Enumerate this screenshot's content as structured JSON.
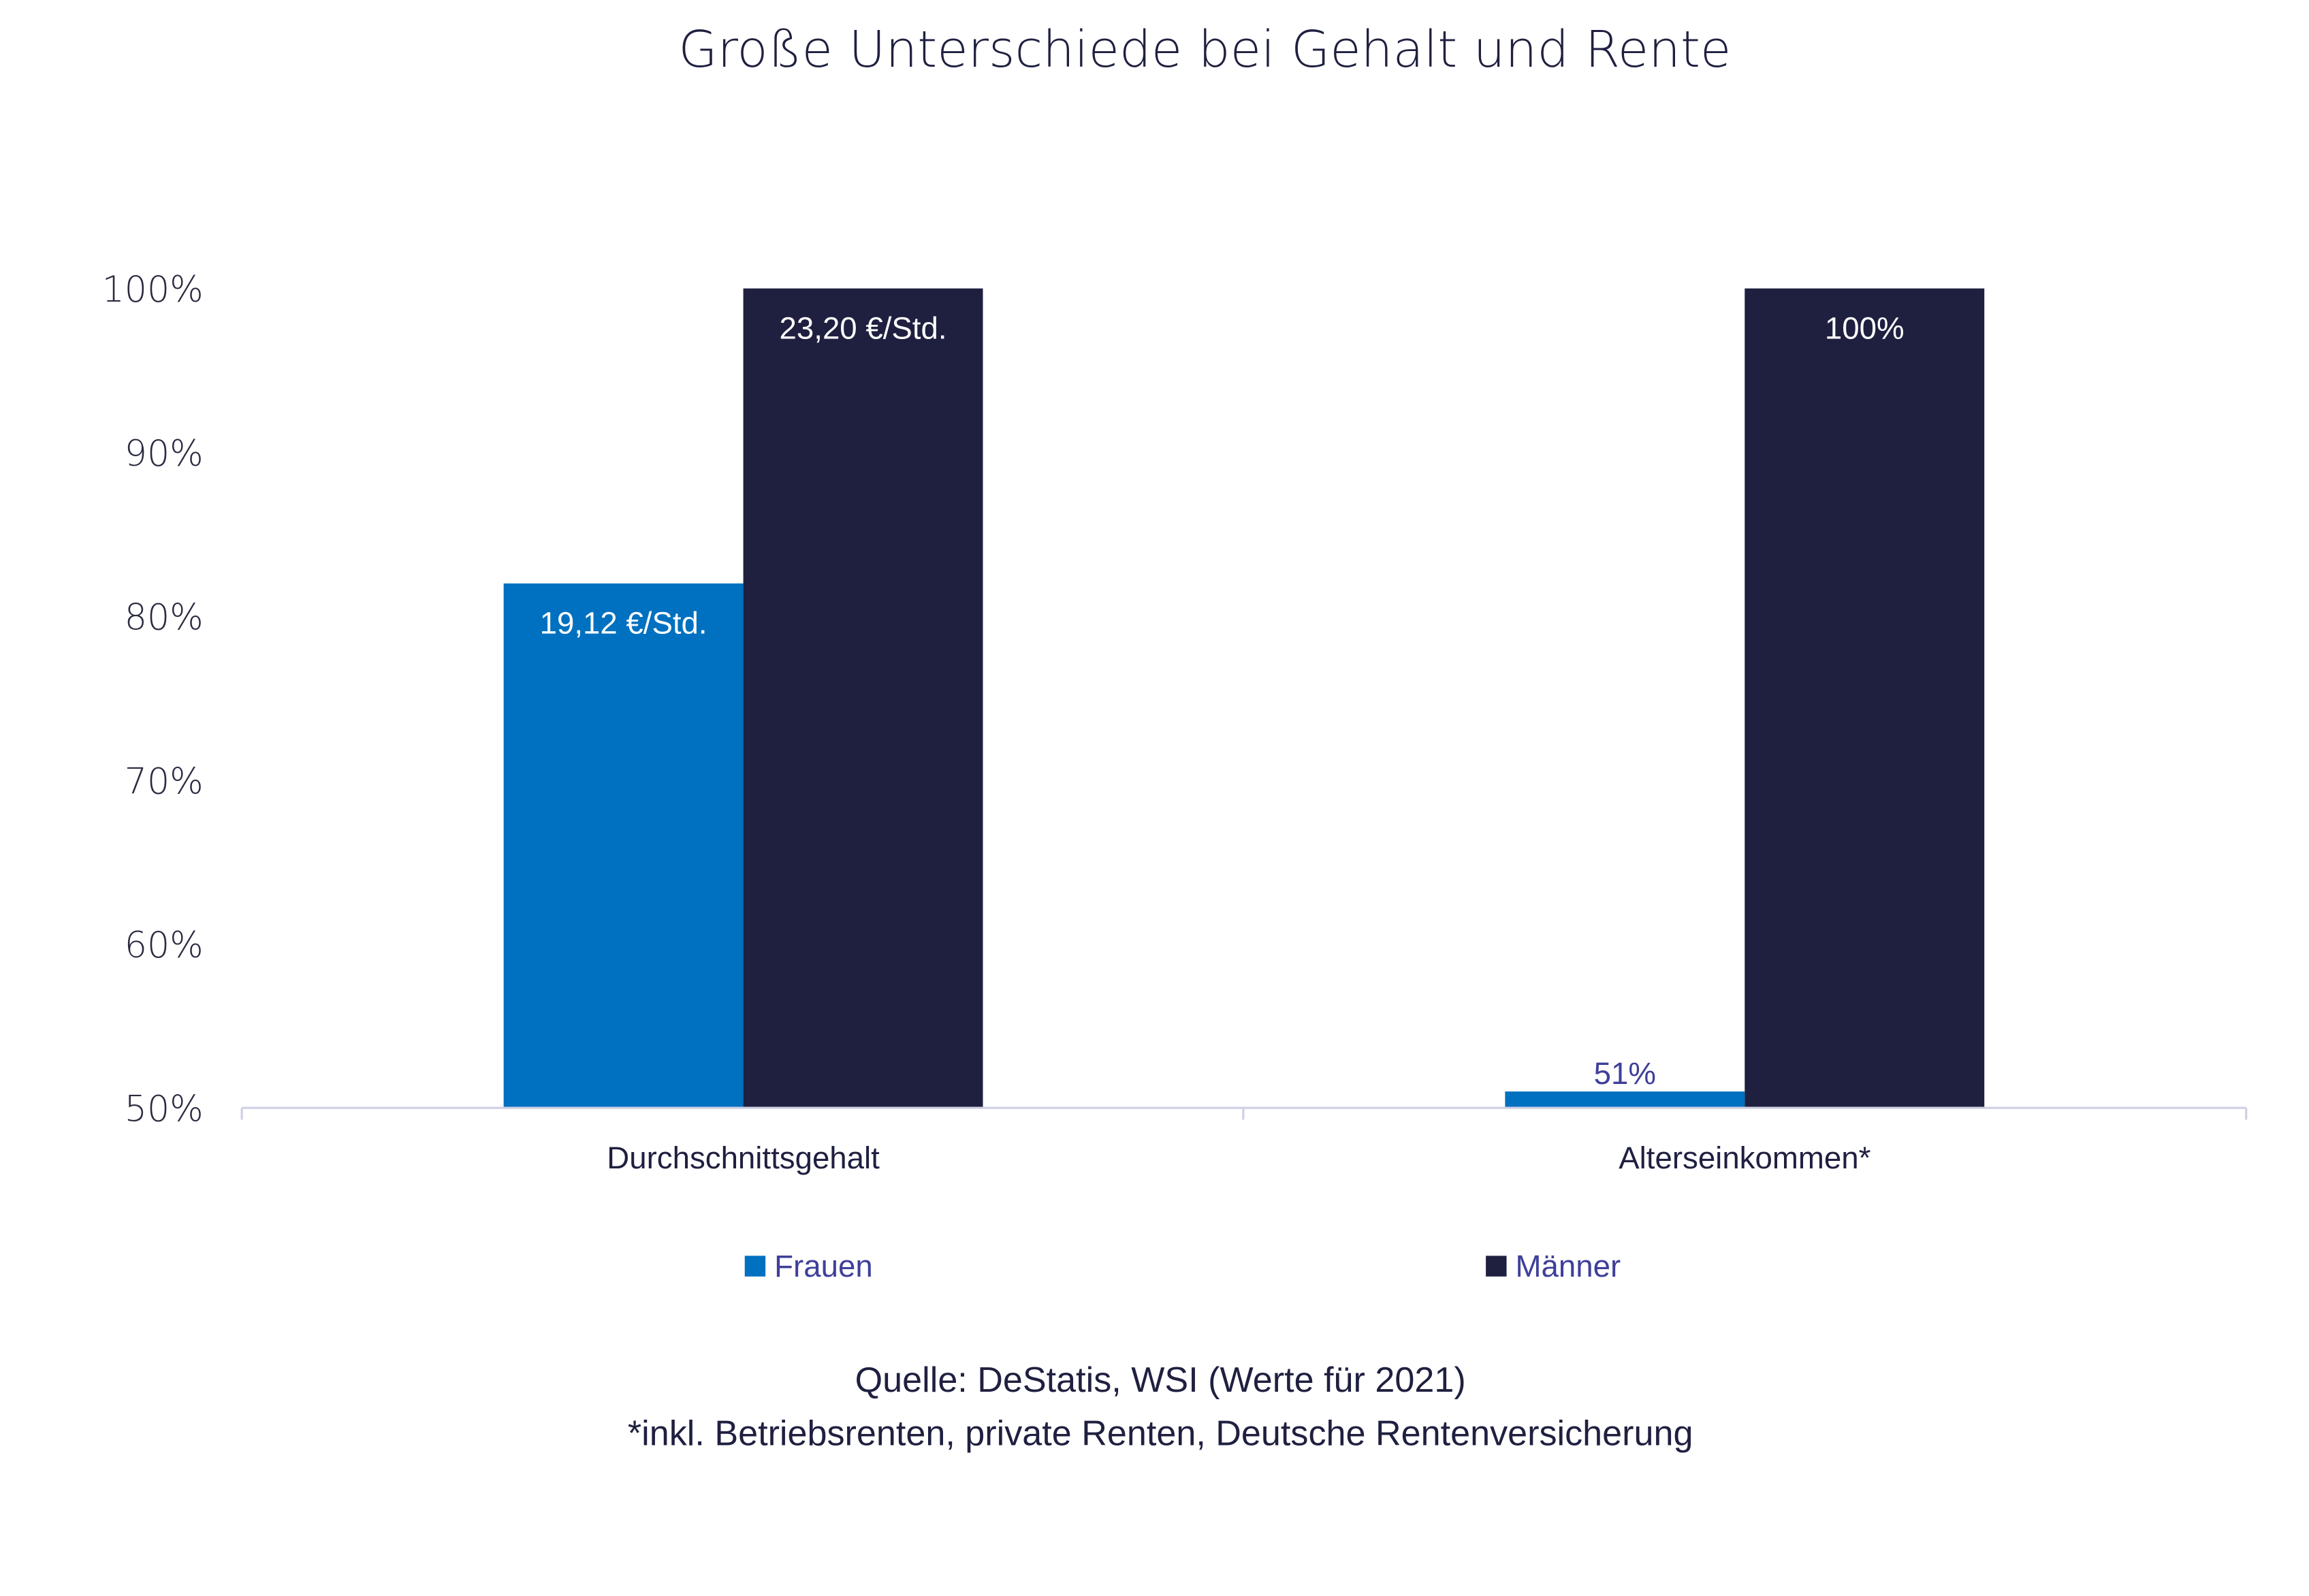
{
  "chart_data": {
    "type": "bar",
    "title": "Große Unterschiede bei Gehalt und Rente",
    "categories": [
      "Durchschnittsgehalt",
      "Alterseinkommen*"
    ],
    "series": [
      {
        "name": "Frauen",
        "color": "#0070C0",
        "values": [
          82,
          51
        ],
        "labels": [
          "19,12 €/Std.",
          "51%"
        ]
      },
      {
        "name": "Männer",
        "color": "#1F2040",
        "values": [
          100,
          100
        ],
        "labels": [
          "23,20 €/Std.",
          "100%"
        ]
      }
    ],
    "ylim": [
      50,
      100
    ],
    "yticks": [
      "50%",
      "60%",
      "70%",
      "80%",
      "90%",
      "100%"
    ],
    "grid": false,
    "legend_placement": "bottom",
    "notes": [
      "Quelle: DeStatis, WSI (Werte für 2021)",
      "*inkl. Betriebsrenten, private Renten, Deutsche Rentenversicherung"
    ]
  }
}
